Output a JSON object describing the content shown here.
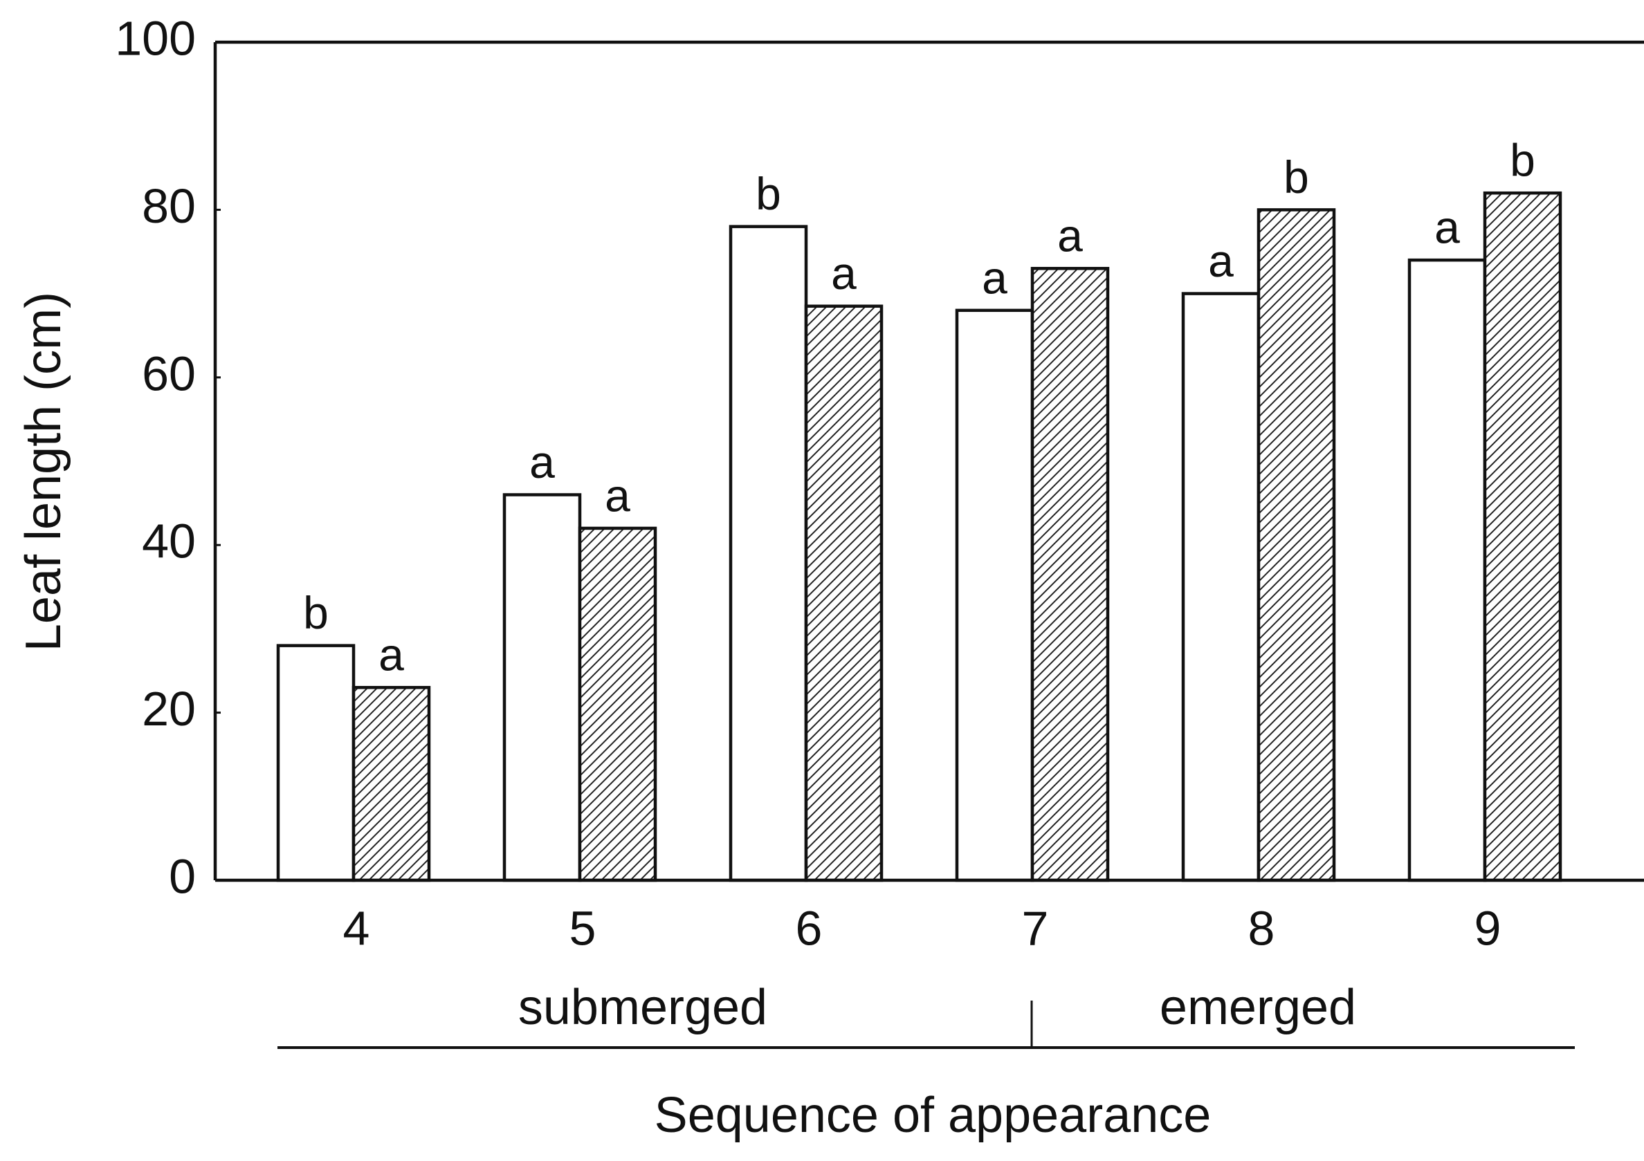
{
  "chart_data": {
    "type": "bar",
    "ylabel": "Leaf length (cm)",
    "xlabel": "Sequence of appearance",
    "groups": [
      "submerged",
      "emerged"
    ],
    "categories": [
      4,
      5,
      6,
      7,
      8,
      9
    ],
    "series": [
      {
        "color": "#ffffff",
        "hatch": false,
        "values": [
          28,
          46,
          78,
          68,
          70,
          74
        ],
        "letters": [
          "b",
          "a",
          "b",
          "a",
          "a",
          "a"
        ]
      },
      {
        "color": "#ffffff",
        "hatch": true,
        "values": [
          23,
          42,
          68.5,
          73,
          80,
          82
        ],
        "letters": [
          "a",
          "a",
          "a",
          "a",
          "b",
          "b"
        ]
      }
    ],
    "ylim": [
      0,
      100
    ],
    "yticks": [
      0,
      20,
      40,
      60,
      80,
      100
    ],
    "grid": false
  }
}
